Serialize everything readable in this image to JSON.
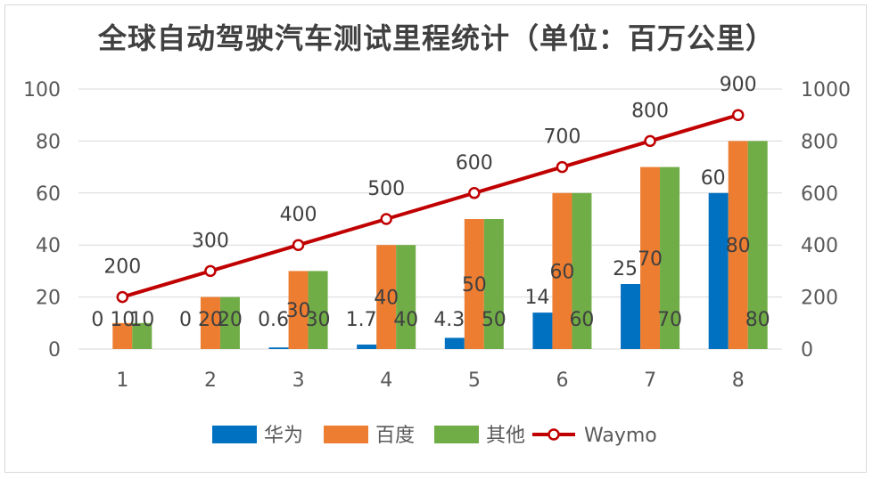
{
  "chart_data": {
    "type": "bar",
    "title": "全球自动驾驶汽车测试里程统计（单位：百万公里）",
    "categories": [
      "1",
      "2",
      "3",
      "4",
      "5",
      "6",
      "7",
      "8"
    ],
    "series": [
      {
        "name": "华为",
        "type": "bar",
        "axis": "left",
        "color": "#0070C0",
        "values": [
          0,
          0,
          0.6,
          1.7,
          4.3,
          14,
          25,
          60
        ]
      },
      {
        "name": "百度",
        "type": "bar",
        "axis": "left",
        "color": "#ED7D31",
        "values": [
          10,
          20,
          30,
          40,
          50,
          60,
          70,
          80
        ]
      },
      {
        "name": "其他",
        "type": "bar",
        "axis": "left",
        "color": "#70AD47",
        "values": [
          10,
          20,
          30,
          40,
          50,
          60,
          70,
          80
        ]
      },
      {
        "name": "Waymo",
        "type": "line",
        "axis": "right",
        "color": "#C00000",
        "values": [
          200,
          300,
          400,
          500,
          600,
          700,
          800,
          900
        ]
      }
    ],
    "left_axis": {
      "ylim": [
        0,
        100
      ],
      "ticks": [
        0,
        20,
        40,
        60,
        80,
        100
      ]
    },
    "right_axis": {
      "ylim": [
        0,
        1000
      ],
      "ticks": [
        0,
        200,
        400,
        600,
        800,
        1000
      ]
    },
    "grid": true,
    "legend": "bottom"
  }
}
